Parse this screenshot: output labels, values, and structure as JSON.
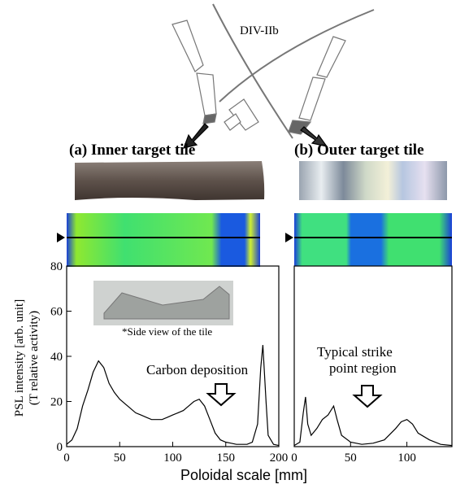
{
  "figure": {
    "diagram_label": "DIV-IIb",
    "panel_a": "(a) Inner target tile",
    "panel_b": "(b) Outer target tile",
    "inset_caption": "*Side view of the tile",
    "xlabel": "Poloidal scale [mm]"
  },
  "chart_data": [
    {
      "type": "line",
      "color": "#000000",
      "ylabel": [
        "PSL intensity [arb. unit]",
        "(T relative activity)"
      ],
      "annotations": [
        "Carbon deposition"
      ],
      "x": [
        0,
        5,
        10,
        15,
        20,
        25,
        30,
        35,
        40,
        45,
        50,
        55,
        60,
        65,
        70,
        75,
        80,
        85,
        90,
        95,
        100,
        105,
        110,
        115,
        120,
        125,
        130,
        135,
        140,
        145,
        150,
        155,
        160,
        165,
        170,
        175,
        180,
        183,
        185,
        188,
        190,
        195,
        200
      ],
      "values": [
        1,
        3,
        8,
        18,
        25,
        33,
        38,
        35,
        28,
        24,
        21,
        19,
        17,
        15,
        14,
        13,
        12,
        12,
        12,
        13,
        14,
        15,
        16,
        18,
        20,
        21,
        18,
        12,
        6,
        3,
        2,
        1.5,
        1,
        1,
        1,
        2,
        10,
        35,
        45,
        20,
        5,
        1,
        0.5
      ],
      "xlim": [
        0,
        200
      ],
      "ylim": [
        0,
        80
      ],
      "xticks": [
        0,
        50,
        100,
        150,
        200
      ],
      "yticks": [
        0,
        20,
        40,
        60,
        80
      ]
    },
    {
      "type": "line",
      "color": "#000000",
      "annotations": [
        "Typical strike",
        "point region"
      ],
      "x": [
        0,
        5,
        8,
        10,
        12,
        15,
        20,
        25,
        30,
        35,
        38,
        42,
        50,
        60,
        70,
        80,
        90,
        95,
        100,
        105,
        110,
        120,
        130,
        140
      ],
      "values": [
        0.5,
        2,
        15,
        22,
        10,
        5,
        8,
        12,
        14,
        18,
        12,
        5,
        2,
        1,
        1.5,
        3,
        8,
        11,
        12,
        10,
        6,
        3,
        1,
        0.5
      ],
      "xlim": [
        0,
        140
      ],
      "ylim": [
        0,
        80
      ],
      "xticks": [
        0,
        50,
        100
      ]
    }
  ]
}
